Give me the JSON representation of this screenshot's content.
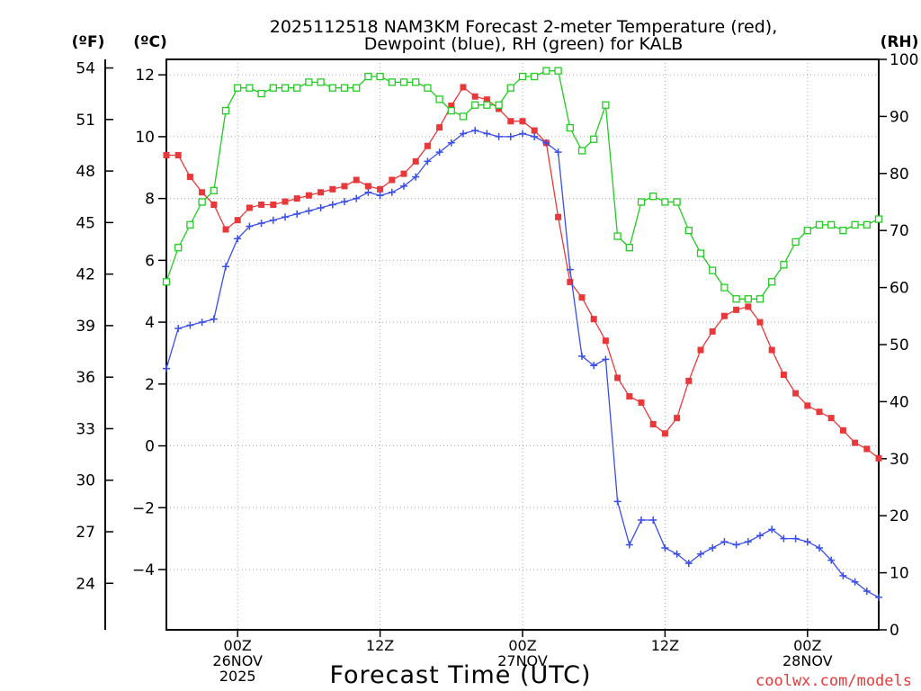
{
  "chart_data": {
    "type": "line",
    "title_line1": "2025112518 NAM3KM Forecast 2-meter Temperature (red),",
    "title_line2": "Dewpoint (blue), RH (green) for KALB",
    "xlabel": "Forecast Time (UTC)",
    "credit": "coolwx.com/models",
    "axis_units": {
      "fahrenheit": "(ºF)",
      "celsius": "(ºC)",
      "rh": "(RH)"
    },
    "ylim_c": [
      -5.95,
      12.5
    ],
    "ylim_rh": [
      0,
      100
    ],
    "xlim_hours": [
      0,
      60
    ],
    "celsius_ticks": [
      -4,
      -2,
      0,
      2,
      4,
      6,
      8,
      10,
      12
    ],
    "fahrenheit_ticks": [
      24,
      27,
      30,
      33,
      36,
      39,
      42,
      45,
      48,
      51,
      54
    ],
    "rh_ticks": [
      0,
      10,
      20,
      30,
      40,
      50,
      60,
      70,
      80,
      90,
      100
    ],
    "x_ticks": [
      {
        "hour": 6,
        "lines": [
          "00Z",
          "26NOV",
          "2025"
        ]
      },
      {
        "hour": 18,
        "lines": [
          "12Z"
        ]
      },
      {
        "hour": 30,
        "lines": [
          "00Z",
          "27NOV"
        ]
      },
      {
        "hour": 42,
        "lines": [
          "12Z"
        ]
      },
      {
        "hour": 54,
        "lines": [
          "00Z",
          "28NOV"
        ]
      }
    ],
    "hours": [
      0,
      1,
      2,
      3,
      4,
      5,
      6,
      7,
      8,
      9,
      10,
      11,
      12,
      13,
      14,
      15,
      16,
      17,
      18,
      19,
      20,
      21,
      22,
      23,
      24,
      25,
      26,
      27,
      28,
      29,
      30,
      31,
      32,
      33,
      34,
      35,
      36,
      37,
      38,
      39,
      40,
      41,
      42,
      43,
      44,
      45,
      46,
      47,
      48,
      49,
      50,
      51,
      52,
      53,
      54,
      55,
      56,
      57,
      58,
      59,
      60
    ],
    "series": [
      {
        "name": "2-meter Temperature",
        "unit": "C",
        "color": "#e8383a",
        "marker": "filled-square",
        "values": [
          9.4,
          9.4,
          8.7,
          8.2,
          7.8,
          7.0,
          7.3,
          7.7,
          7.8,
          7.8,
          7.9,
          8.0,
          8.1,
          8.2,
          8.3,
          8.4,
          8.6,
          8.4,
          8.3,
          8.6,
          8.8,
          9.2,
          9.7,
          10.3,
          11.0,
          11.6,
          11.3,
          11.2,
          10.9,
          10.5,
          10.5,
          10.2,
          9.8,
          7.4,
          5.3,
          4.8,
          4.1,
          3.4,
          2.2,
          1.6,
          1.4,
          0.7,
          0.4,
          0.9,
          2.1,
          3.1,
          3.7,
          4.2,
          4.4,
          4.5,
          4.0,
          3.1,
          2.3,
          1.7,
          1.3,
          1.1,
          0.9,
          0.5,
          0.1,
          -0.1,
          -0.4
        ]
      },
      {
        "name": "Dewpoint",
        "unit": "C",
        "color": "#3a4ee8",
        "marker": "plus",
        "values": [
          2.5,
          3.8,
          3.9,
          4.0,
          4.1,
          5.8,
          6.7,
          7.1,
          7.2,
          7.3,
          7.4,
          7.5,
          7.6,
          7.7,
          7.8,
          7.9,
          8.0,
          8.2,
          8.1,
          8.2,
          8.4,
          8.7,
          9.2,
          9.5,
          9.8,
          10.1,
          10.2,
          10.1,
          10.0,
          10.0,
          10.1,
          10.0,
          9.8,
          9.5,
          5.7,
          2.9,
          2.6,
          2.8,
          -1.8,
          -3.2,
          -2.4,
          -2.4,
          -3.3,
          -3.5,
          -3.8,
          -3.5,
          -3.3,
          -3.1,
          -3.2,
          -3.1,
          -2.9,
          -2.7,
          -3.0,
          -3.0,
          -3.1,
          -3.3,
          -3.7,
          -4.2,
          -4.4,
          -4.7,
          -4.9
        ]
      },
      {
        "name": "RH",
        "unit": "%",
        "color": "#22cc22",
        "marker": "open-square",
        "values": [
          61,
          67,
          71,
          75,
          77,
          91,
          95,
          95,
          94,
          95,
          95,
          95,
          96,
          96,
          95,
          95,
          95,
          97,
          97,
          96,
          96,
          96,
          95,
          93,
          91,
          90,
          92,
          92,
          92,
          95,
          97,
          97,
          98,
          98,
          88,
          84,
          86,
          92,
          69,
          67,
          75,
          76,
          75,
          75,
          70,
          66,
          63,
          60,
          58,
          58,
          58,
          61,
          64,
          68,
          70,
          71,
          71,
          70,
          71,
          71,
          72
        ]
      }
    ]
  }
}
